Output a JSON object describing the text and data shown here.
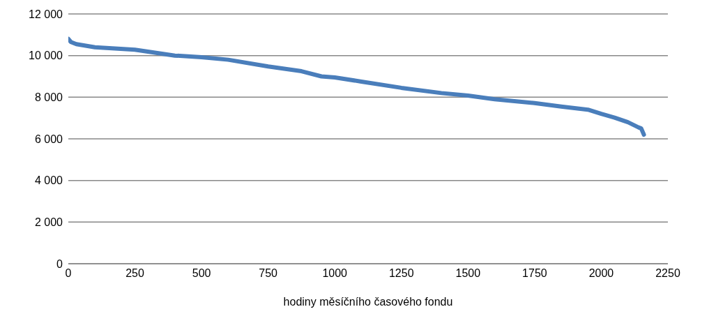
{
  "chart_data": {
    "type": "line",
    "xlabel": "hodiny měsíčního časového fondu",
    "x": [
      0,
      10,
      30,
      100,
      250,
      400,
      500,
      600,
      750,
      875,
      950,
      1000,
      1100,
      1250,
      1400,
      1500,
      1600,
      1750,
      1850,
      1950,
      2000,
      2050,
      2100,
      2140,
      2150,
      2160
    ],
    "series": [
      {
        "color": "#4a7ebb",
        "values": [
          10800,
          10650,
          10550,
          10400,
          10280,
          10000,
          9920,
          9800,
          9480,
          9250,
          9000,
          8950,
          8750,
          8450,
          8200,
          8080,
          7900,
          7720,
          7550,
          7400,
          7200,
          7020,
          6800,
          6550,
          6500,
          6200
        ]
      }
    ],
    "xlim": [
      0,
      2250
    ],
    "xticks": [
      0,
      250,
      500,
      750,
      1000,
      1250,
      1500,
      1750,
      2000,
      2250
    ],
    "ylim": [
      0,
      12000
    ],
    "yticks": [
      {
        "value": 0,
        "label": "0"
      },
      {
        "value": 2000,
        "label": "2 000"
      },
      {
        "value": 4000,
        "label": "4 000"
      },
      {
        "value": 6000,
        "label": "6 000"
      },
      {
        "value": 8000,
        "label": "8 000"
      },
      {
        "value": 10000,
        "label": "10 000"
      },
      {
        "value": 12000,
        "label": "12 000"
      }
    ],
    "grid": "y",
    "marker": "none",
    "line_style": "solid",
    "legend": false
  }
}
